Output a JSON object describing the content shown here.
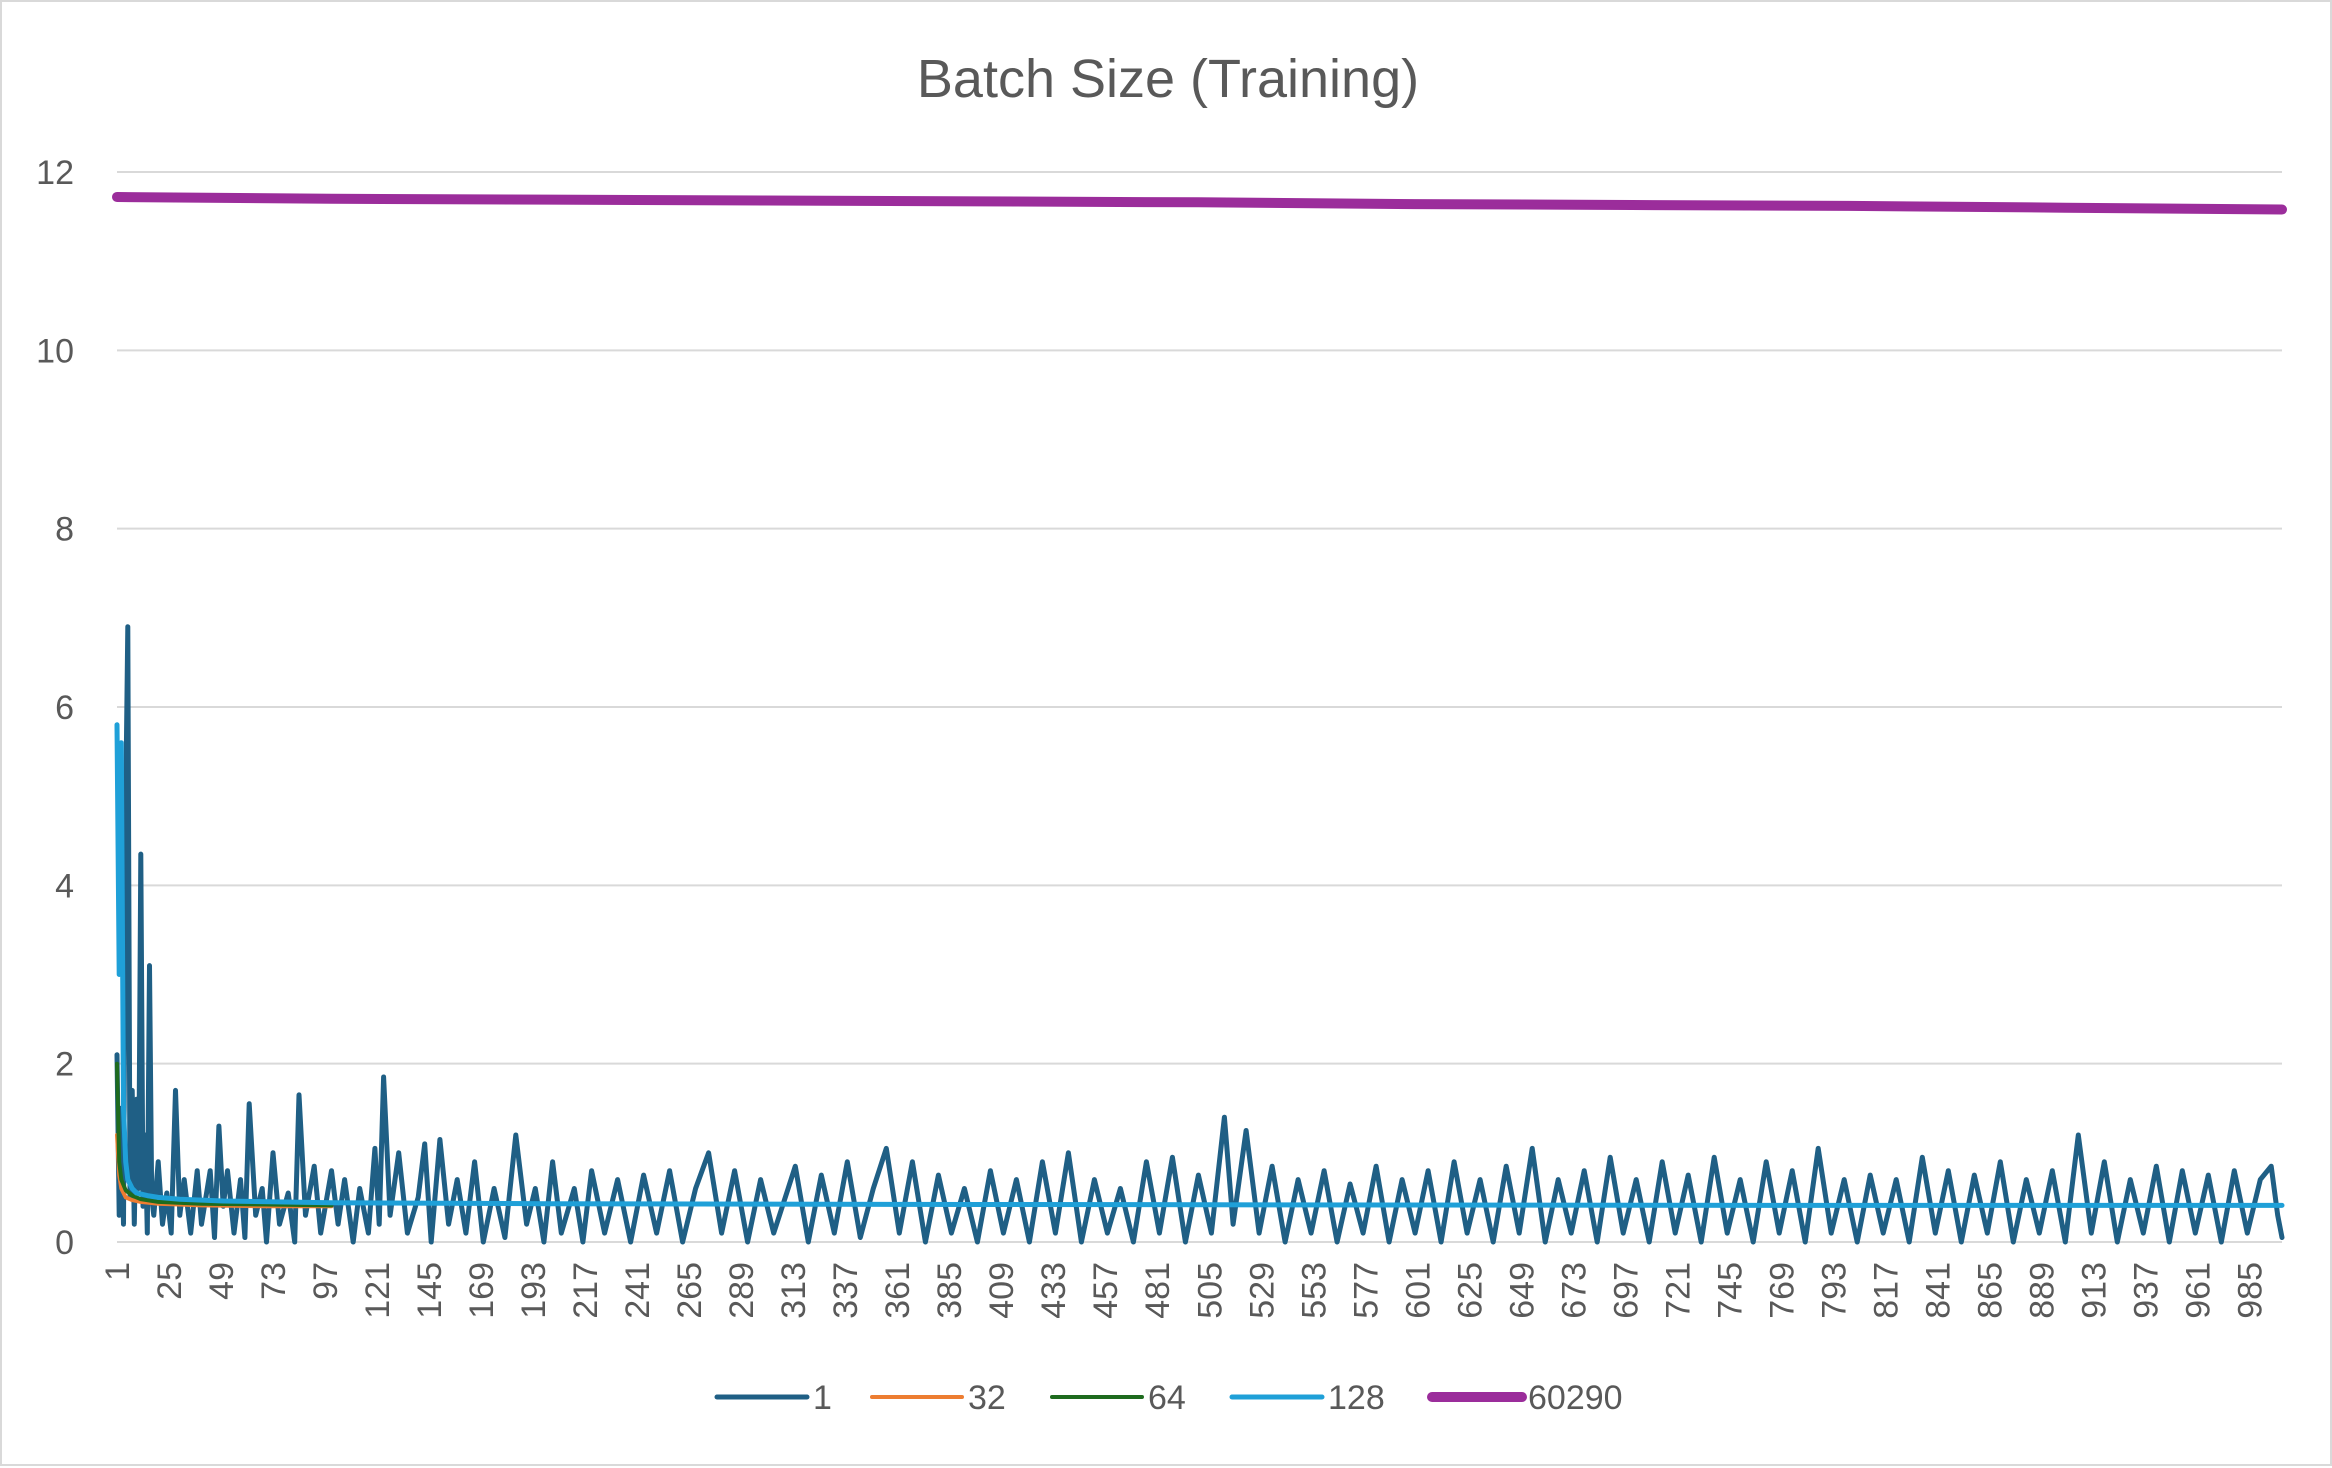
{
  "chart_data": {
    "type": "line",
    "title": "Batch Size (Training)",
    "xlabel": "",
    "ylabel": "",
    "x_range": [
      1,
      1000
    ],
    "ylim": [
      0,
      12
    ],
    "y_ticks": [
      0,
      2,
      4,
      6,
      8,
      10,
      12
    ],
    "x_tick_labels": [
      1,
      25,
      49,
      73,
      97,
      121,
      145,
      169,
      193,
      217,
      241,
      265,
      289,
      313,
      337,
      361,
      385,
      409,
      433,
      457,
      481,
      505,
      529,
      553,
      577,
      601,
      625,
      649,
      673,
      697,
      721,
      745,
      769,
      793,
      817,
      841,
      865,
      889,
      913,
      937,
      961,
      985
    ],
    "grid": "horizontal",
    "legend_position": "bottom",
    "series": [
      {
        "name": "1",
        "color": "#1f5f85",
        "points": [
          [
            1,
            2.1
          ],
          [
            2,
            0.3
          ],
          [
            3,
            1.5
          ],
          [
            4,
            0.2
          ],
          [
            5,
            4.9
          ],
          [
            6,
            6.9
          ],
          [
            7,
            0.5
          ],
          [
            8,
            1.7
          ],
          [
            9,
            0.2
          ],
          [
            10,
            1.6
          ],
          [
            11,
            0.6
          ],
          [
            12,
            4.35
          ],
          [
            13,
            0.4
          ],
          [
            14,
            1.2
          ],
          [
            15,
            0.1
          ],
          [
            16,
            3.1
          ],
          [
            17,
            0.5
          ],
          [
            18,
            0.3
          ],
          [
            20,
            0.9
          ],
          [
            22,
            0.2
          ],
          [
            24,
            0.55
          ],
          [
            26,
            0.1
          ],
          [
            28,
            1.7
          ],
          [
            30,
            0.3
          ],
          [
            32,
            0.7
          ],
          [
            35,
            0.1
          ],
          [
            38,
            0.8
          ],
          [
            40,
            0.2
          ],
          [
            44,
            0.8
          ],
          [
            46,
            0.05
          ],
          [
            48,
            1.3
          ],
          [
            50,
            0.4
          ],
          [
            52,
            0.8
          ],
          [
            55,
            0.1
          ],
          [
            58,
            0.7
          ],
          [
            60,
            0.05
          ],
          [
            62,
            1.55
          ],
          [
            65,
            0.3
          ],
          [
            68,
            0.6
          ],
          [
            70,
            0.0
          ],
          [
            73,
            1.0
          ],
          [
            76,
            0.2
          ],
          [
            80,
            0.55
          ],
          [
            83,
            0.0
          ],
          [
            85,
            1.65
          ],
          [
            88,
            0.3
          ],
          [
            92,
            0.85
          ],
          [
            95,
            0.1
          ],
          [
            100,
            0.8
          ],
          [
            103,
            0.2
          ],
          [
            106,
            0.7
          ],
          [
            110,
            0.0
          ],
          [
            113,
            0.6
          ],
          [
            117,
            0.1
          ],
          [
            120,
            1.05
          ],
          [
            122,
            0.2
          ],
          [
            124,
            1.85
          ],
          [
            127,
            0.3
          ],
          [
            131,
            1.0
          ],
          [
            135,
            0.1
          ],
          [
            140,
            0.5
          ],
          [
            143,
            1.1
          ],
          [
            146,
            0.0
          ],
          [
            150,
            1.15
          ],
          [
            154,
            0.2
          ],
          [
            158,
            0.7
          ],
          [
            162,
            0.1
          ],
          [
            166,
            0.9
          ],
          [
            170,
            0.0
          ],
          [
            175,
            0.6
          ],
          [
            180,
            0.05
          ],
          [
            185,
            1.2
          ],
          [
            190,
            0.2
          ],
          [
            194,
            0.6
          ],
          [
            198,
            0.0
          ],
          [
            202,
            0.9
          ],
          [
            206,
            0.1
          ],
          [
            212,
            0.6
          ],
          [
            216,
            0.0
          ],
          [
            220,
            0.8
          ],
          [
            226,
            0.1
          ],
          [
            232,
            0.7
          ],
          [
            238,
            0.0
          ],
          [
            244,
            0.75
          ],
          [
            250,
            0.1
          ],
          [
            256,
            0.8
          ],
          [
            262,
            0.0
          ],
          [
            268,
            0.6
          ],
          [
            274,
            1.0
          ],
          [
            280,
            0.1
          ],
          [
            286,
            0.8
          ],
          [
            292,
            0.0
          ],
          [
            298,
            0.7
          ],
          [
            304,
            0.1
          ],
          [
            310,
            0.55
          ],
          [
            314,
            0.85
          ],
          [
            320,
            0.0
          ],
          [
            326,
            0.75
          ],
          [
            332,
            0.1
          ],
          [
            338,
            0.9
          ],
          [
            344,
            0.05
          ],
          [
            350,
            0.6
          ],
          [
            356,
            1.05
          ],
          [
            362,
            0.1
          ],
          [
            368,
            0.9
          ],
          [
            374,
            0.0
          ],
          [
            380,
            0.75
          ],
          [
            386,
            0.1
          ],
          [
            392,
            0.6
          ],
          [
            398,
            0.0
          ],
          [
            404,
            0.8
          ],
          [
            410,
            0.1
          ],
          [
            416,
            0.7
          ],
          [
            422,
            0.0
          ],
          [
            428,
            0.9
          ],
          [
            434,
            0.1
          ],
          [
            440,
            1.0
          ],
          [
            446,
            0.0
          ],
          [
            452,
            0.7
          ],
          [
            458,
            0.1
          ],
          [
            464,
            0.6
          ],
          [
            470,
            0.0
          ],
          [
            476,
            0.9
          ],
          [
            482,
            0.1
          ],
          [
            488,
            0.95
          ],
          [
            494,
            0.0
          ],
          [
            500,
            0.75
          ],
          [
            506,
            0.1
          ],
          [
            512,
            1.4
          ],
          [
            516,
            0.2
          ],
          [
            522,
            1.25
          ],
          [
            528,
            0.1
          ],
          [
            534,
            0.85
          ],
          [
            540,
            0.0
          ],
          [
            546,
            0.7
          ],
          [
            552,
            0.1
          ],
          [
            558,
            0.8
          ],
          [
            564,
            0.0
          ],
          [
            570,
            0.65
          ],
          [
            576,
            0.1
          ],
          [
            582,
            0.85
          ],
          [
            588,
            0.0
          ],
          [
            594,
            0.7
          ],
          [
            600,
            0.1
          ],
          [
            606,
            0.8
          ],
          [
            612,
            0.0
          ],
          [
            618,
            0.9
          ],
          [
            624,
            0.1
          ],
          [
            630,
            0.7
          ],
          [
            636,
            0.0
          ],
          [
            642,
            0.85
          ],
          [
            648,
            0.1
          ],
          [
            654,
            1.05
          ],
          [
            660,
            0.0
          ],
          [
            666,
            0.7
          ],
          [
            672,
            0.1
          ],
          [
            678,
            0.8
          ],
          [
            684,
            0.0
          ],
          [
            690,
            0.95
          ],
          [
            696,
            0.1
          ],
          [
            702,
            0.7
          ],
          [
            708,
            0.0
          ],
          [
            714,
            0.9
          ],
          [
            720,
            0.1
          ],
          [
            726,
            0.75
          ],
          [
            732,
            0.0
          ],
          [
            738,
            0.95
          ],
          [
            744,
            0.1
          ],
          [
            750,
            0.7
          ],
          [
            756,
            0.0
          ],
          [
            762,
            0.9
          ],
          [
            768,
            0.1
          ],
          [
            774,
            0.8
          ],
          [
            780,
            0.0
          ],
          [
            786,
            1.05
          ],
          [
            792,
            0.1
          ],
          [
            798,
            0.7
          ],
          [
            804,
            0.0
          ],
          [
            810,
            0.75
          ],
          [
            816,
            0.1
          ],
          [
            822,
            0.7
          ],
          [
            828,
            0.0
          ],
          [
            834,
            0.95
          ],
          [
            840,
            0.1
          ],
          [
            846,
            0.8
          ],
          [
            852,
            0.0
          ],
          [
            858,
            0.75
          ],
          [
            864,
            0.1
          ],
          [
            870,
            0.9
          ],
          [
            876,
            0.0
          ],
          [
            882,
            0.7
          ],
          [
            888,
            0.1
          ],
          [
            894,
            0.8
          ],
          [
            900,
            0.0
          ],
          [
            906,
            1.2
          ],
          [
            912,
            0.1
          ],
          [
            918,
            0.9
          ],
          [
            924,
            0.0
          ],
          [
            930,
            0.7
          ],
          [
            936,
            0.1
          ],
          [
            942,
            0.85
          ],
          [
            948,
            0.0
          ],
          [
            954,
            0.8
          ],
          [
            960,
            0.1
          ],
          [
            966,
            0.75
          ],
          [
            972,
            0.0
          ],
          [
            978,
            0.8
          ],
          [
            984,
            0.1
          ],
          [
            990,
            0.7
          ],
          [
            995,
            0.85
          ],
          [
            998,
            0.3
          ],
          [
            1000,
            0.05
          ]
        ]
      },
      {
        "name": "32",
        "color": "#ed7d31",
        "points": [
          [
            1,
            1.2
          ],
          [
            2,
            0.75
          ],
          [
            3,
            0.6
          ],
          [
            5,
            0.5
          ],
          [
            8,
            0.47
          ],
          [
            12,
            0.45
          ],
          [
            20,
            0.43
          ],
          [
            40,
            0.41
          ],
          [
            70,
            0.4
          ],
          [
            100,
            0.4
          ]
        ]
      },
      {
        "name": "64",
        "color": "#1e6b1e",
        "points": [
          [
            1,
            2.0
          ],
          [
            2,
            0.9
          ],
          [
            3,
            0.7
          ],
          [
            5,
            0.58
          ],
          [
            8,
            0.52
          ],
          [
            12,
            0.48
          ],
          [
            20,
            0.45
          ],
          [
            40,
            0.43
          ],
          [
            70,
            0.42
          ],
          [
            100,
            0.41
          ]
        ]
      },
      {
        "name": "128",
        "color": "#1fa0d8",
        "points": [
          [
            1,
            5.8
          ],
          [
            2,
            3.0
          ],
          [
            3,
            5.6
          ],
          [
            4,
            1.5
          ],
          [
            5,
            0.9
          ],
          [
            6,
            0.7
          ],
          [
            8,
            0.6
          ],
          [
            10,
            0.55
          ],
          [
            15,
            0.52
          ],
          [
            20,
            0.5
          ],
          [
            30,
            0.48
          ],
          [
            50,
            0.46
          ],
          [
            100,
            0.44
          ],
          [
            200,
            0.43
          ],
          [
            400,
            0.42
          ],
          [
            600,
            0.415
          ],
          [
            800,
            0.41
          ],
          [
            1000,
            0.41
          ]
        ]
      },
      {
        "name": "60290",
        "color": "#9b2d9b",
        "points": [
          [
            1,
            11.72
          ],
          [
            100,
            11.7
          ],
          [
            200,
            11.69
          ],
          [
            300,
            11.68
          ],
          [
            400,
            11.67
          ],
          [
            500,
            11.66
          ],
          [
            600,
            11.64
          ],
          [
            700,
            11.63
          ],
          [
            800,
            11.62
          ],
          [
            900,
            11.6
          ],
          [
            1000,
            11.58
          ]
        ]
      }
    ]
  }
}
